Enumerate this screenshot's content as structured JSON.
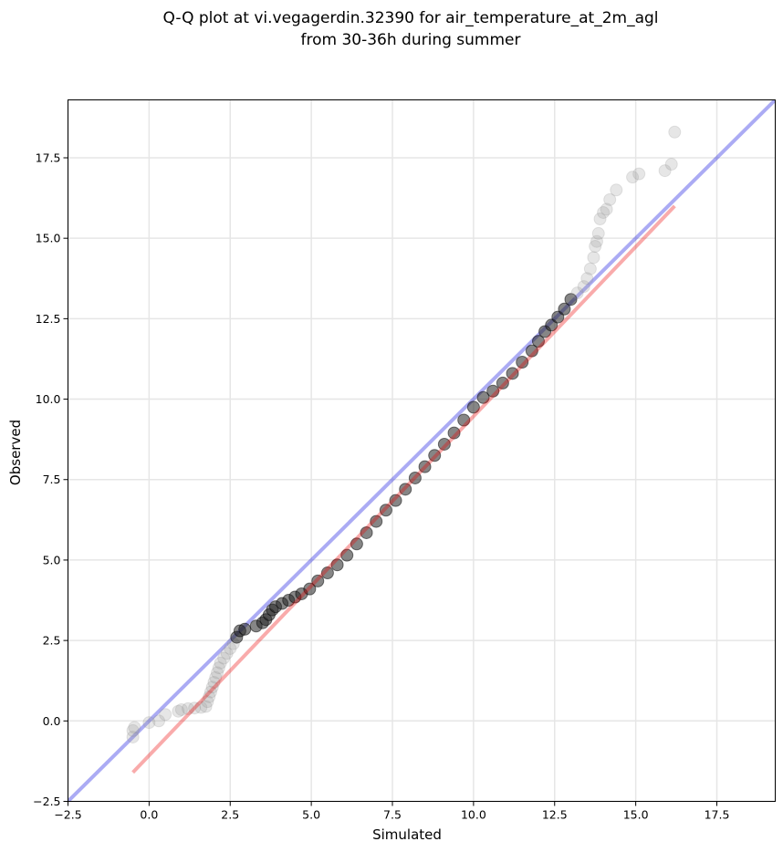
{
  "chart_data": {
    "type": "scatter",
    "title": "Q-Q plot at vi.vegagerdin.32390 for air_temperature_at_2m_agl",
    "subtitle": "from 30-36h during summer",
    "xlabel": "Simulated",
    "ylabel": "Observed",
    "xlim": [
      -2.5,
      19.3
    ],
    "ylim": [
      -2.5,
      19.3
    ],
    "xticks": [
      "−2.5",
      "0.0",
      "2.5",
      "5.0",
      "7.5",
      "10.0",
      "12.5",
      "15.0",
      "17.5"
    ],
    "yticks": [
      "−2.5",
      "0.0",
      "2.5",
      "5.0",
      "7.5",
      "10.0",
      "12.5",
      "15.0",
      "17.5"
    ],
    "grid": true,
    "identity_line": {
      "x": [
        -2.5,
        19.3
      ],
      "y": [
        -2.5,
        19.3
      ],
      "color": "#0000dd"
    },
    "fit_line": {
      "x": [
        -0.5,
        16.2
      ],
      "y": [
        -1.6,
        16.0
      ],
      "color": "#ee0000"
    },
    "points": [
      {
        "x": -0.5,
        "y": -0.5
      },
      {
        "x": -0.5,
        "y": -0.3
      },
      {
        "x": -0.45,
        "y": -0.2
      },
      {
        "x": 0.0,
        "y": -0.05
      },
      {
        "x": 0.3,
        "y": 0.0
      },
      {
        "x": 0.5,
        "y": 0.2
      },
      {
        "x": 0.9,
        "y": 0.3
      },
      {
        "x": 1.0,
        "y": 0.35
      },
      {
        "x": 1.2,
        "y": 0.38
      },
      {
        "x": 1.4,
        "y": 0.4
      },
      {
        "x": 1.6,
        "y": 0.42
      },
      {
        "x": 1.75,
        "y": 0.45
      },
      {
        "x": 1.8,
        "y": 0.6
      },
      {
        "x": 1.85,
        "y": 0.75
      },
      {
        "x": 1.9,
        "y": 0.9
      },
      {
        "x": 1.95,
        "y": 1.05
      },
      {
        "x": 2.0,
        "y": 1.2
      },
      {
        "x": 2.05,
        "y": 1.35
      },
      {
        "x": 2.1,
        "y": 1.5
      },
      {
        "x": 2.15,
        "y": 1.65
      },
      {
        "x": 2.2,
        "y": 1.8
      },
      {
        "x": 2.3,
        "y": 1.95
      },
      {
        "x": 2.4,
        "y": 2.1
      },
      {
        "x": 2.5,
        "y": 2.25
      },
      {
        "x": 2.6,
        "y": 2.4
      },
      {
        "x": 2.7,
        "y": 2.6
      },
      {
        "x": 2.8,
        "y": 2.8
      },
      {
        "x": 2.95,
        "y": 2.85
      },
      {
        "x": 3.3,
        "y": 2.95
      },
      {
        "x": 3.5,
        "y": 3.05
      },
      {
        "x": 3.6,
        "y": 3.15
      },
      {
        "x": 3.7,
        "y": 3.3
      },
      {
        "x": 3.8,
        "y": 3.45
      },
      {
        "x": 3.9,
        "y": 3.55
      },
      {
        "x": 4.1,
        "y": 3.65
      },
      {
        "x": 4.3,
        "y": 3.75
      },
      {
        "x": 4.5,
        "y": 3.85
      },
      {
        "x": 4.7,
        "y": 3.95
      },
      {
        "x": 4.95,
        "y": 4.1
      },
      {
        "x": 5.2,
        "y": 4.35
      },
      {
        "x": 5.5,
        "y": 4.6
      },
      {
        "x": 5.8,
        "y": 4.85
      },
      {
        "x": 6.1,
        "y": 5.15
      },
      {
        "x": 6.4,
        "y": 5.5
      },
      {
        "x": 6.7,
        "y": 5.85
      },
      {
        "x": 7.0,
        "y": 6.2
      },
      {
        "x": 7.3,
        "y": 6.55
      },
      {
        "x": 7.6,
        "y": 6.85
      },
      {
        "x": 7.9,
        "y": 7.2
      },
      {
        "x": 8.2,
        "y": 7.55
      },
      {
        "x": 8.5,
        "y": 7.9
      },
      {
        "x": 8.8,
        "y": 8.25
      },
      {
        "x": 9.1,
        "y": 8.6
      },
      {
        "x": 9.4,
        "y": 8.95
      },
      {
        "x": 9.7,
        "y": 9.35
      },
      {
        "x": 10.0,
        "y": 9.75
      },
      {
        "x": 10.3,
        "y": 10.05
      },
      {
        "x": 10.6,
        "y": 10.25
      },
      {
        "x": 10.9,
        "y": 10.5
      },
      {
        "x": 11.2,
        "y": 10.8
      },
      {
        "x": 11.5,
        "y": 11.15
      },
      {
        "x": 11.8,
        "y": 11.5
      },
      {
        "x": 12.0,
        "y": 11.8
      },
      {
        "x": 12.2,
        "y": 12.1
      },
      {
        "x": 12.4,
        "y": 12.3
      },
      {
        "x": 12.6,
        "y": 12.55
      },
      {
        "x": 12.8,
        "y": 12.8
      },
      {
        "x": 13.0,
        "y": 13.1
      },
      {
        "x": 13.2,
        "y": 13.3
      },
      {
        "x": 13.4,
        "y": 13.5
      },
      {
        "x": 13.5,
        "y": 13.75
      },
      {
        "x": 13.6,
        "y": 14.05
      },
      {
        "x": 13.7,
        "y": 14.4
      },
      {
        "x": 13.75,
        "y": 14.75
      },
      {
        "x": 13.8,
        "y": 14.9
      },
      {
        "x": 13.85,
        "y": 15.15
      },
      {
        "x": 13.9,
        "y": 15.6
      },
      {
        "x": 14.0,
        "y": 15.8
      },
      {
        "x": 14.1,
        "y": 15.9
      },
      {
        "x": 14.2,
        "y": 16.2
      },
      {
        "x": 14.4,
        "y": 16.5
      },
      {
        "x": 14.9,
        "y": 16.9
      },
      {
        "x": 15.1,
        "y": 17.0
      },
      {
        "x": 15.9,
        "y": 17.1
      },
      {
        "x": 16.1,
        "y": 17.3
      },
      {
        "x": 16.2,
        "y": 18.3
      }
    ]
  }
}
